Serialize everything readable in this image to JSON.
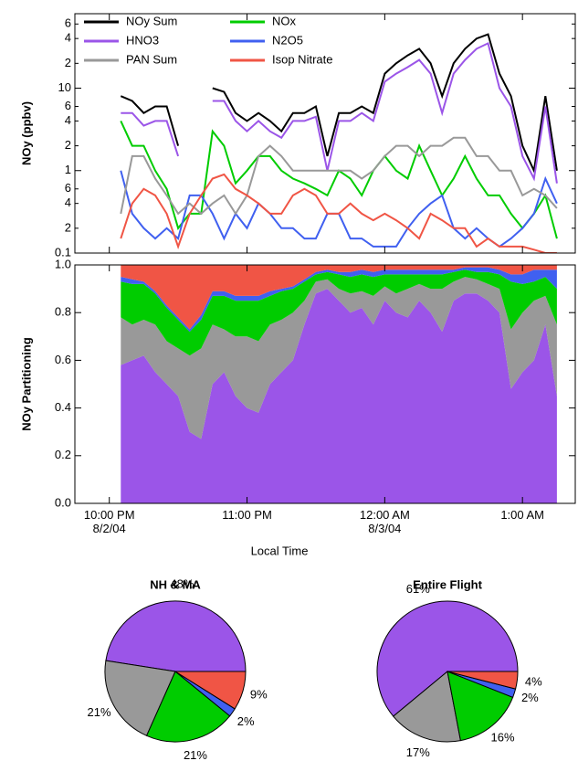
{
  "chart_data": [
    {
      "type": "line",
      "ylabel": "NOy (ppbv)",
      "yscale": "log",
      "legend": "upper left",
      "xlim": [
        "2004-08-02T21:45",
        "2004-08-03T01:23"
      ],
      "ylim": [
        0.1,
        80
      ],
      "yticks": [
        0.1,
        {
          "value": 0.2,
          "label": "2"
        },
        {
          "value": 0.4,
          "label": "4"
        },
        {
          "value": 0.6,
          "label": "6"
        },
        1,
        {
          "value": 2,
          "label": "2"
        },
        {
          "value": 4,
          "label": "4"
        },
        {
          "value": 6,
          "label": "6"
        },
        10,
        {
          "value": 20,
          "label": "2"
        },
        {
          "value": 40,
          "label": "4"
        },
        {
          "value": 60,
          "label": "6"
        }
      ],
      "x": [
        "2004-08-02T22:05",
        "2004-08-02T22:10",
        "2004-08-02T22:15",
        "2004-08-02T22:20",
        "2004-08-02T22:25",
        "2004-08-02T22:30",
        "2004-08-02T22:35",
        "2004-08-02T22:40",
        "2004-08-02T22:45",
        "2004-08-02T22:50",
        "2004-08-02T22:55",
        "2004-08-02T23:00",
        "2004-08-02T23:05",
        "2004-08-02T23:10",
        "2004-08-02T23:15",
        "2004-08-02T23:20",
        "2004-08-02T23:25",
        "2004-08-02T23:30",
        "2004-08-02T23:35",
        "2004-08-02T23:40",
        "2004-08-02T23:45",
        "2004-08-02T23:50",
        "2004-08-02T23:55",
        "2004-08-03T00:00",
        "2004-08-03T00:05",
        "2004-08-03T00:10",
        "2004-08-03T00:15",
        "2004-08-03T00:20",
        "2004-08-03T00:25",
        "2004-08-03T00:30",
        "2004-08-03T00:35",
        "2004-08-03T00:40",
        "2004-08-03T00:45",
        "2004-08-03T00:50",
        "2004-08-03T00:55",
        "2004-08-03T01:00",
        "2004-08-03T01:05",
        "2004-08-03T01:10",
        "2004-08-03T01:15"
      ],
      "series": [
        {
          "name": "NOy Sum",
          "color": "#000000",
          "values": [
            8,
            7,
            5,
            6,
            6,
            2,
            null,
            null,
            10,
            9,
            5,
            4,
            5,
            4,
            3,
            5,
            5,
            6,
            1.5,
            5,
            5,
            6,
            5,
            15,
            20,
            25,
            30,
            20,
            8,
            20,
            30,
            40,
            45,
            15,
            8,
            2,
            1,
            8,
            1
          ]
        },
        {
          "name": "NOx",
          "color": "#00cc00",
          "values": [
            4,
            2,
            2,
            1,
            0.6,
            0.2,
            0.3,
            0.3,
            3,
            2,
            0.7,
            1,
            1.5,
            1.5,
            1,
            0.8,
            0.7,
            0.6,
            0.5,
            1,
            0.8,
            0.5,
            1,
            1.5,
            1,
            0.8,
            2,
            1,
            0.5,
            0.8,
            1.5,
            0.8,
            0.5,
            0.5,
            0.3,
            0.2,
            0.3,
            0.5,
            0.15
          ]
        },
        {
          "name": "HNO3",
          "color": "#9b55e8",
          "values": [
            5,
            5,
            3.5,
            4,
            4,
            1.5,
            null,
            null,
            7,
            7,
            4,
            3,
            4,
            3,
            2.5,
            4,
            4,
            4.5,
            1,
            4,
            4,
            5,
            4,
            12,
            15,
            18,
            22,
            15,
            5,
            15,
            22,
            30,
            35,
            10,
            6,
            1.5,
            0.8,
            6,
            0.7
          ]
        },
        {
          "name": "N2O5",
          "color": "#4060f0",
          "values": [
            1,
            0.3,
            0.2,
            0.15,
            0.2,
            0.15,
            0.5,
            0.5,
            0.3,
            0.15,
            0.3,
            0.2,
            0.4,
            0.3,
            0.2,
            0.2,
            0.15,
            0.15,
            0.3,
            0.3,
            0.15,
            0.15,
            0.12,
            0.12,
            0.12,
            0.2,
            0.3,
            0.4,
            0.5,
            0.2,
            0.15,
            0.2,
            0.15,
            0.12,
            0.15,
            0.2,
            0.3,
            0.8,
            0.4
          ]
        },
        {
          "name": "PAN Sum",
          "color": "#999999",
          "values": [
            0.3,
            1.5,
            1.5,
            0.8,
            0.5,
            0.3,
            0.4,
            0.3,
            0.4,
            0.5,
            0.3,
            0.5,
            1.5,
            2,
            1.5,
            1,
            1,
            1,
            1,
            1,
            1,
            0.8,
            1,
            1.5,
            2,
            2,
            1.5,
            2,
            2,
            2.5,
            2.5,
            1.5,
            1.5,
            1,
            1,
            0.5,
            0.6,
            0.5,
            0.35
          ]
        },
        {
          "name": "Isop Nitrate",
          "color": "#f05545",
          "values": [
            0.15,
            0.4,
            0.6,
            0.5,
            0.3,
            0.12,
            0.3,
            0.5,
            0.8,
            0.9,
            0.6,
            0.5,
            0.4,
            0.3,
            0.3,
            0.5,
            0.6,
            0.5,
            0.3,
            0.3,
            0.4,
            0.3,
            0.25,
            0.3,
            0.25,
            0.2,
            0.15,
            0.3,
            0.25,
            0.2,
            0.2,
            0.12,
            0.15,
            0.12,
            0.12,
            0.12,
            0.11,
            0.1,
            0.1
          ]
        }
      ]
    },
    {
      "type": "area",
      "stacked": true,
      "ylabel": "NOy Partitioning",
      "xlabel": "Local Time",
      "xlim": [
        "2004-08-02T21:45",
        "2004-08-03T01:23"
      ],
      "ylim": [
        0,
        1
      ],
      "xticks": [
        {
          "value": "2004-08-02T22:00",
          "label": "10:00 PM\n8/2/04"
        },
        {
          "value": "2004-08-02T23:00",
          "label": "11:00 PM"
        },
        {
          "value": "2004-08-03T00:00",
          "label": "12:00 AM\n8/3/04"
        },
        {
          "value": "2004-08-03T01:00",
          "label": "1:00 AM"
        }
      ],
      "yticks": [
        {
          "value": 0,
          "label": "0.0"
        },
        0.2,
        0.4,
        0.6,
        0.8,
        {
          "value": 1,
          "label": "1.0"
        }
      ],
      "x": [
        "2004-08-02T22:05",
        "2004-08-02T22:10",
        "2004-08-02T22:15",
        "2004-08-02T22:20",
        "2004-08-02T22:25",
        "2004-08-02T22:30",
        "2004-08-02T22:35",
        "2004-08-02T22:40",
        "2004-08-02T22:45",
        "2004-08-02T22:50",
        "2004-08-02T22:55",
        "2004-08-02T23:00",
        "2004-08-02T23:05",
        "2004-08-02T23:10",
        "2004-08-02T23:15",
        "2004-08-02T23:20",
        "2004-08-02T23:25",
        "2004-08-02T23:30",
        "2004-08-02T23:35",
        "2004-08-02T23:40",
        "2004-08-02T23:45",
        "2004-08-02T23:50",
        "2004-08-02T23:55",
        "2004-08-03T00:00",
        "2004-08-03T00:05",
        "2004-08-03T00:10",
        "2004-08-03T00:15",
        "2004-08-03T00:20",
        "2004-08-03T00:25",
        "2004-08-03T00:30",
        "2004-08-03T00:35",
        "2004-08-03T00:40",
        "2004-08-03T00:45",
        "2004-08-03T00:50",
        "2004-08-03T00:55",
        "2004-08-03T01:00",
        "2004-08-03T01:05",
        "2004-08-03T01:10",
        "2004-08-03T01:15"
      ],
      "series": [
        {
          "color": "#9b55e8",
          "values": [
            0.58,
            0.6,
            0.62,
            0.55,
            0.5,
            0.45,
            0.3,
            0.27,
            0.5,
            0.55,
            0.45,
            0.4,
            0.38,
            0.5,
            0.55,
            0.6,
            0.75,
            0.88,
            0.9,
            0.85,
            0.8,
            0.82,
            0.75,
            0.85,
            0.8,
            0.78,
            0.85,
            0.8,
            0.72,
            0.85,
            0.88,
            0.88,
            0.85,
            0.8,
            0.48,
            0.55,
            0.6,
            0.75,
            0.45
          ]
        },
        {
          "color": "#999999",
          "values": [
            0.2,
            0.15,
            0.15,
            0.2,
            0.18,
            0.2,
            0.32,
            0.38,
            0.25,
            0.18,
            0.25,
            0.3,
            0.3,
            0.25,
            0.22,
            0.2,
            0.1,
            0.05,
            0.04,
            0.05,
            0.08,
            0.07,
            0.12,
            0.06,
            0.08,
            0.12,
            0.07,
            0.1,
            0.18,
            0.08,
            0.07,
            0.06,
            0.07,
            0.1,
            0.25,
            0.25,
            0.25,
            0.12,
            0.3
          ]
        },
        {
          "color": "#00cc00",
          "values": [
            0.15,
            0.17,
            0.15,
            0.13,
            0.14,
            0.12,
            0.1,
            0.12,
            0.12,
            0.14,
            0.15,
            0.15,
            0.17,
            0.12,
            0.12,
            0.1,
            0.08,
            0.03,
            0.03,
            0.06,
            0.07,
            0.07,
            0.08,
            0.05,
            0.08,
            0.06,
            0.04,
            0.06,
            0.06,
            0.04,
            0.03,
            0.03,
            0.05,
            0.06,
            0.2,
            0.12,
            0.08,
            0.08,
            0.15
          ]
        },
        {
          "color": "#4060f0",
          "values": [
            0.02,
            0.02,
            0.01,
            0.01,
            0.01,
            0.01,
            0.01,
            0.02,
            0.02,
            0.02,
            0.02,
            0.02,
            0.02,
            0.02,
            0.01,
            0.01,
            0.01,
            0.01,
            0.01,
            0.01,
            0.02,
            0.02,
            0.02,
            0.02,
            0.02,
            0.02,
            0.02,
            0.02,
            0.02,
            0.01,
            0.01,
            0.02,
            0.02,
            0.02,
            0.03,
            0.04,
            0.05,
            0.03,
            0.08
          ]
        },
        {
          "color": "#f05545",
          "values": [
            0.05,
            0.06,
            0.07,
            0.11,
            0.17,
            0.22,
            0.27,
            0.21,
            0.11,
            0.11,
            0.13,
            0.13,
            0.13,
            0.11,
            0.1,
            0.09,
            0.06,
            0.03,
            0.02,
            0.03,
            0.03,
            0.02,
            0.03,
            0.02,
            0.02,
            0.02,
            0.02,
            0.02,
            0.02,
            0.02,
            0.01,
            0.01,
            0.01,
            0.02,
            0.04,
            0.04,
            0.02,
            0.02,
            0.02
          ]
        }
      ]
    },
    {
      "type": "pie",
      "title": "NH & MA",
      "startangle": 0,
      "direction": "counterclockwise",
      "values": [
        48,
        21,
        21,
        2,
        9
      ],
      "value_labels": [
        "48%",
        "21%",
        "21%",
        "2%",
        "9%"
      ],
      "colors": [
        "#9b55e8",
        "#999999",
        "#00cc00",
        "#4060f0",
        "#f05545"
      ]
    },
    {
      "type": "pie",
      "title": "Entire Flight",
      "startangle": 0,
      "direction": "counterclockwise",
      "values": [
        61,
        17,
        16,
        2,
        4
      ],
      "value_labels": [
        "61%",
        "17%",
        "16%",
        "2%",
        "4%"
      ],
      "colors": [
        "#9b55e8",
        "#999999",
        "#00cc00",
        "#4060f0",
        "#f05545"
      ]
    }
  ]
}
